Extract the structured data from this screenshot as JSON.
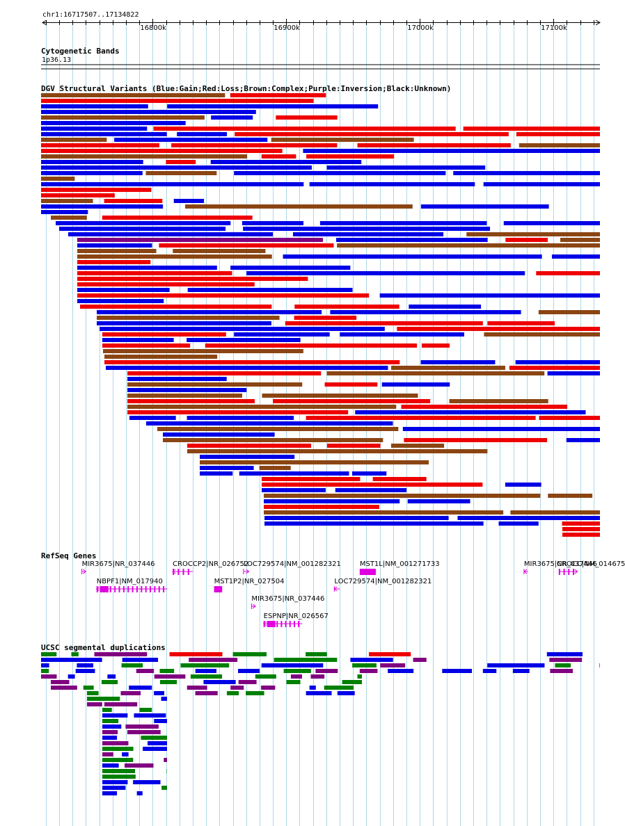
{
  "colors": {
    "gain": "#0000e6",
    "loss": "#ee0000",
    "complex": "#8b4513",
    "inversion": "#800080",
    "unknown": "#000000",
    "gene": "#e000e0",
    "segdup_purple": "#800080",
    "segdup_green": "#008000",
    "segdup_blue": "#0000e6",
    "segdup_red": "#ee0000",
    "grid": "#add8e6"
  },
  "ruler": {
    "location_label": "chr1:16717507..17134822",
    "start": 16717507,
    "end": 17134822,
    "ticks": [
      {
        "pos": 16800000,
        "label": "16800k"
      },
      {
        "pos": 16900000,
        "label": "16900k"
      },
      {
        "pos": 17000000,
        "label": "17000k"
      },
      {
        "pos": 17100000,
        "label": "17100k"
      }
    ]
  },
  "tracks": {
    "cytoband": {
      "title": "Cytogenetic Bands",
      "band": "1p36.13"
    },
    "dgv": {
      "title": "DGV Structural Variants (Blue:Gain;Red:Loss;Brown:Complex;Purple:Inversion;Black:Unknown)"
    },
    "refseq": {
      "title": "RefSeq Genes",
      "genes": [
        {
          "label": "MIR3675|NR_037446",
          "start": 16747000,
          "end": 16750000,
          "strand": "+",
          "row": 0,
          "type": "mini"
        },
        {
          "label": "CROCCP2|NR_026752",
          "start": 16815000,
          "end": 16830000,
          "strand": "-",
          "row": 0,
          "type": "split"
        },
        {
          "label": "LOC729574|NM_001282321",
          "start": 16868000,
          "end": 16872000,
          "strand": "+",
          "row": 0,
          "type": "mini"
        },
        {
          "label": "MST1L|NM_001271733",
          "start": 16955000,
          "end": 16967000,
          "strand": "+",
          "row": 0,
          "type": "block"
        },
        {
          "label": "MIR3675|NR_037446",
          "start": 17078000,
          "end": 17081000,
          "strand": "-",
          "row": 0,
          "type": "mini"
        },
        {
          "label": "CROCC|NM_014675",
          "start": 17104000,
          "end": 17118000,
          "strand": "+",
          "row": 0,
          "type": "split"
        },
        {
          "label": "NBPF1|NM_017940",
          "start": 16758000,
          "end": 16811000,
          "strand": "-",
          "row": 1,
          "type": "exons"
        },
        {
          "label": "MST1P2|NR_027504",
          "start": 16846000,
          "end": 16852000,
          "strand": "+",
          "row": 1,
          "type": "block"
        },
        {
          "label": "LOC729574|NM_001282321",
          "start": 16936000,
          "end": 16940000,
          "strand": "-",
          "row": 1,
          "type": "mini"
        },
        {
          "label": "MIR3675|NR_037446",
          "start": 16874000,
          "end": 16877000,
          "strand": "+",
          "row": 2,
          "type": "mini"
        },
        {
          "label": "ESPNP|NR_026567",
          "start": 16883000,
          "end": 16912000,
          "strand": "-",
          "row": 3,
          "type": "exons"
        }
      ]
    },
    "segdup": {
      "title": "UCSC segmental duplications"
    }
  }
}
